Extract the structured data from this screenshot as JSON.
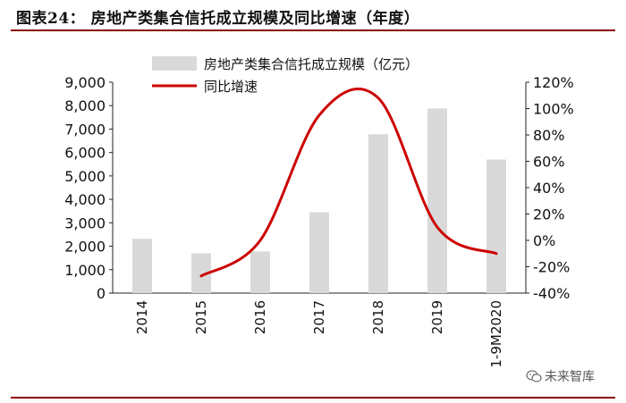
{
  "title": "图表24：  房地产类集合信托成立规模及同比增速（年度）",
  "watermark": "未来智库",
  "chart_data": {
    "type": "bar",
    "categories": [
      "2014",
      "2015",
      "2016",
      "2017",
      "2018",
      "2019",
      "1-9M2020"
    ],
    "series": [
      {
        "name": "房地产类集合信托成立规模（亿元）",
        "type": "bar",
        "axis": "left",
        "color": "#d9d9d9",
        "values": [
          2320,
          1700,
          1780,
          3450,
          6780,
          7880,
          5700
        ]
      },
      {
        "name": "同比增速",
        "type": "line",
        "axis": "right",
        "color": "#cc0000",
        "values": [
          null,
          -27,
          0,
          95,
          108,
          10,
          -10
        ]
      }
    ],
    "y_left": {
      "ylim": [
        0,
        9000
      ],
      "ticks": [
        0,
        1000,
        2000,
        3000,
        4000,
        5000,
        6000,
        7000,
        8000,
        9000
      ],
      "tick_labels": [
        "0",
        "1,000",
        "2,000",
        "3,000",
        "4,000",
        "5,000",
        "6,000",
        "7,000",
        "8,000",
        "9,000"
      ]
    },
    "y_right": {
      "ylim": [
        -40,
        120
      ],
      "ticks": [
        -40,
        -20,
        0,
        20,
        40,
        60,
        80,
        100,
        120
      ],
      "tick_labels": [
        "-40%",
        "-20%",
        "0%",
        "20%",
        "40%",
        "60%",
        "80%",
        "100%",
        "120%"
      ]
    },
    "grid": false,
    "legend": "top-center"
  }
}
